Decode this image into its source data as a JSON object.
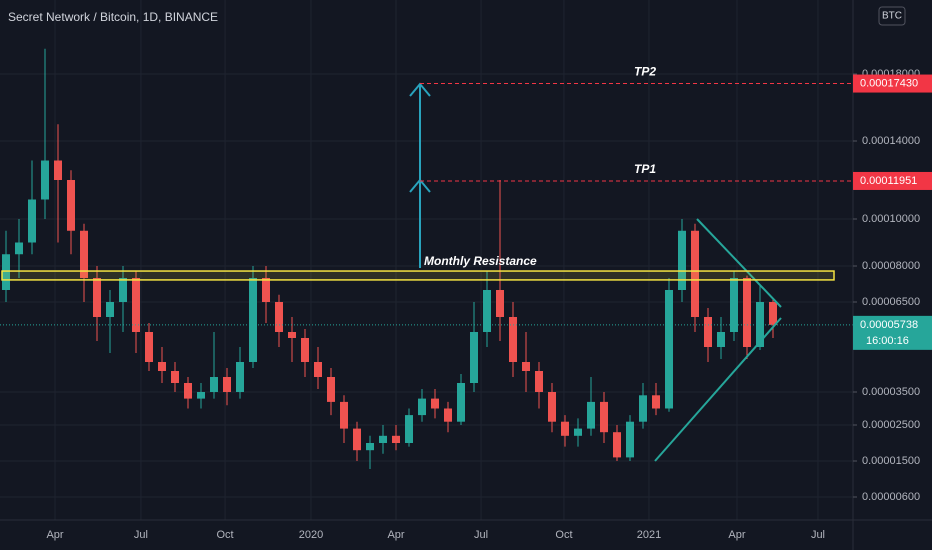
{
  "chart_data": {
    "type": "candlestick",
    "title": "Secret Network / Bitcoin, 1D, BINANCE",
    "currency": "BTC",
    "open": [
      7e-05,
      8.5e-05,
      9e-05,
      0.00011,
      0.00013,
      0.00012,
      9.5e-05,
      7.5e-05,
      6e-05,
      6.5e-05,
      7.5e-05,
      5.5e-05,
      4.5e-05,
      4.2e-05,
      3.8e-05,
      3.3e-05,
      3.5e-05,
      4e-05,
      3.5e-05,
      4.5e-05,
      7.5e-05,
      6.5e-05,
      5.5e-05,
      5.3e-05,
      4.5e-05,
      4e-05,
      3.2e-05,
      2.4e-05,
      1.8e-05,
      2e-05,
      2.2e-05,
      2e-05,
      2.8e-05,
      3.3e-05,
      3e-05,
      2.6e-05,
      3.8e-05,
      5.5e-05,
      7e-05,
      6e-05,
      4.5e-05,
      4.2e-05,
      3.5e-05,
      2.6e-05,
      2.2e-05,
      2.4e-05,
      3.2e-05,
      2.3e-05,
      1.6e-05,
      2.6e-05,
      3.4e-05,
      3e-05,
      7e-05,
      9.5e-05,
      6e-05,
      5e-05,
      5.5e-05,
      7.5e-05,
      5e-05,
      6.5e-05
    ],
    "high": [
      9.5e-05,
      0.0001,
      0.00013,
      0.000195,
      0.00015,
      0.000125,
      9.8e-05,
      8e-05,
      7e-05,
      8e-05,
      7.8e-05,
      5.8e-05,
      5e-05,
      4.5e-05,
      4e-05,
      3.8e-05,
      5.5e-05,
      4.3e-05,
      5e-05,
      8e-05,
      8e-05,
      6.8e-05,
      6e-05,
      5.6e-05,
      5e-05,
      4.3e-05,
      3.4e-05,
      2.6e-05,
      2.2e-05,
      2.5e-05,
      2.5e-05,
      3e-05,
      3.6e-05,
      3.6e-05,
      3.2e-05,
      4.1e-05,
      6.5e-05,
      7.8e-05,
      0.00012,
      6.5e-05,
      5.5e-05,
      4.5e-05,
      3.8e-05,
      2.8e-05,
      2.7e-05,
      4e-05,
      3.5e-05,
      2.5e-05,
      2.8e-05,
      3.8e-05,
      3.8e-05,
      7.5e-05,
      0.0001,
      9.8e-05,
      6.3e-05,
      6e-05,
      7.8e-05,
      7.6e-05,
      7.2e-05,
      6.6e-05
    ],
    "low": [
      6.5e-05,
      7.5e-05,
      8.5e-05,
      0.0001,
      9e-05,
      8.5e-05,
      6.5e-05,
      5.2e-05,
      4.8e-05,
      5.5e-05,
      4.8e-05,
      4.2e-05,
      3.8e-05,
      3.5e-05,
      3e-05,
      3e-05,
      3.3e-05,
      3.1e-05,
      3.3e-05,
      4.3e-05,
      5.8e-05,
      5e-05,
      4.5e-05,
      4e-05,
      3.6e-05,
      2.8e-05,
      2e-05,
      1.5e-05,
      1.3e-05,
      1.7e-05,
      1.8e-05,
      1.9e-05,
      2.6e-05,
      2.7e-05,
      2.3e-05,
      2.5e-05,
      3.5e-05,
      5e-05,
      5.2e-05,
      4e-05,
      3.5e-05,
      3e-05,
      2.3e-05,
      1.9e-05,
      1.9e-05,
      2.2e-05,
      2e-05,
      1.5e-05,
      1.5e-05,
      2.4e-05,
      2.8e-05,
      2.9e-05,
      6.5e-05,
      5.5e-05,
      4.5e-05,
      4.6e-05,
      5.2e-05,
      4.6e-05,
      4.9e-05,
      5.3e-05
    ],
    "close": [
      8.5e-05,
      9e-05,
      0.00011,
      0.00013,
      0.00012,
      9.5e-05,
      7.5e-05,
      6e-05,
      6.5e-05,
      7.5e-05,
      5.5e-05,
      4.5e-05,
      4.2e-05,
      3.8e-05,
      3.3e-05,
      3.5e-05,
      4e-05,
      3.5e-05,
      4.5e-05,
      7.5e-05,
      6.5e-05,
      5.5e-05,
      5.3e-05,
      4.5e-05,
      4e-05,
      3.2e-05,
      2.4e-05,
      1.8e-05,
      2e-05,
      2.2e-05,
      2e-05,
      2.8e-05,
      3.3e-05,
      3e-05,
      2.6e-05,
      3.8e-05,
      5.5e-05,
      7e-05,
      6e-05,
      4.5e-05,
      4.2e-05,
      3.5e-05,
      2.6e-05,
      2.2e-05,
      2.4e-05,
      3.2e-05,
      2.3e-05,
      1.6e-05,
      2.6e-05,
      3.4e-05,
      3e-05,
      7e-05,
      9.5e-05,
      6e-05,
      5e-05,
      5.5e-05,
      7.5e-05,
      5e-05,
      6.5e-05,
      5.738e-05
    ],
    "up_color": "#26a69a",
    "down_color": "#ef5350",
    "xticks": [
      {
        "value": 3.77,
        "label": "Apr"
      },
      {
        "value": 10.38,
        "label": "Jul"
      },
      {
        "value": 16.85,
        "label": "Oct"
      },
      {
        "value": 23.46,
        "label": "2020"
      },
      {
        "value": 30,
        "label": "Apr"
      },
      {
        "value": 36.54,
        "label": "Jul"
      },
      {
        "value": 42.92,
        "label": "Oct"
      },
      {
        "value": 49.46,
        "label": "2021"
      },
      {
        "value": 56.23,
        "label": "Apr"
      },
      {
        "value": 62.46,
        "label": "Jul"
      }
    ],
    "ylim": [
      2.5e-07,
      0.000224
    ],
    "yticks": [
      {
        "value": 6e-06,
        "label": "0.00000600"
      },
      {
        "value": 1.5e-05,
        "label": "0.00001500"
      },
      {
        "value": 2.5e-05,
        "label": "0.00002500"
      },
      {
        "value": 3.5e-05,
        "label": "0.00003500"
      },
      {
        "value": 6.5e-05,
        "label": "0.00006500"
      },
      {
        "value": 8e-05,
        "label": "0.00008000"
      },
      {
        "value": 0.0001,
        "label": "0.00010000"
      },
      {
        "value": 0.00014,
        "label": "0.00014000"
      },
      {
        "value": 0.00018,
        "label": "0.00018000"
      }
    ],
    "grid": true,
    "price_lines": [
      {
        "name": "TP2",
        "value": 0.0001743,
        "label": "0.00017430",
        "color": "#f23645"
      },
      {
        "name": "TP1",
        "value": 0.00011951,
        "label": "0.00011951",
        "color": "#f23645"
      }
    ],
    "current_price": {
      "value": 5.738e-05,
      "label": "0.00005738",
      "countdown": "16:00:16",
      "color": "#26a69a"
    },
    "resistance_zone": {
      "name": "Monthly Resistance",
      "range": [
        7.42e-05,
        7.79e-05
      ],
      "color": "#f5e342"
    }
  }
}
